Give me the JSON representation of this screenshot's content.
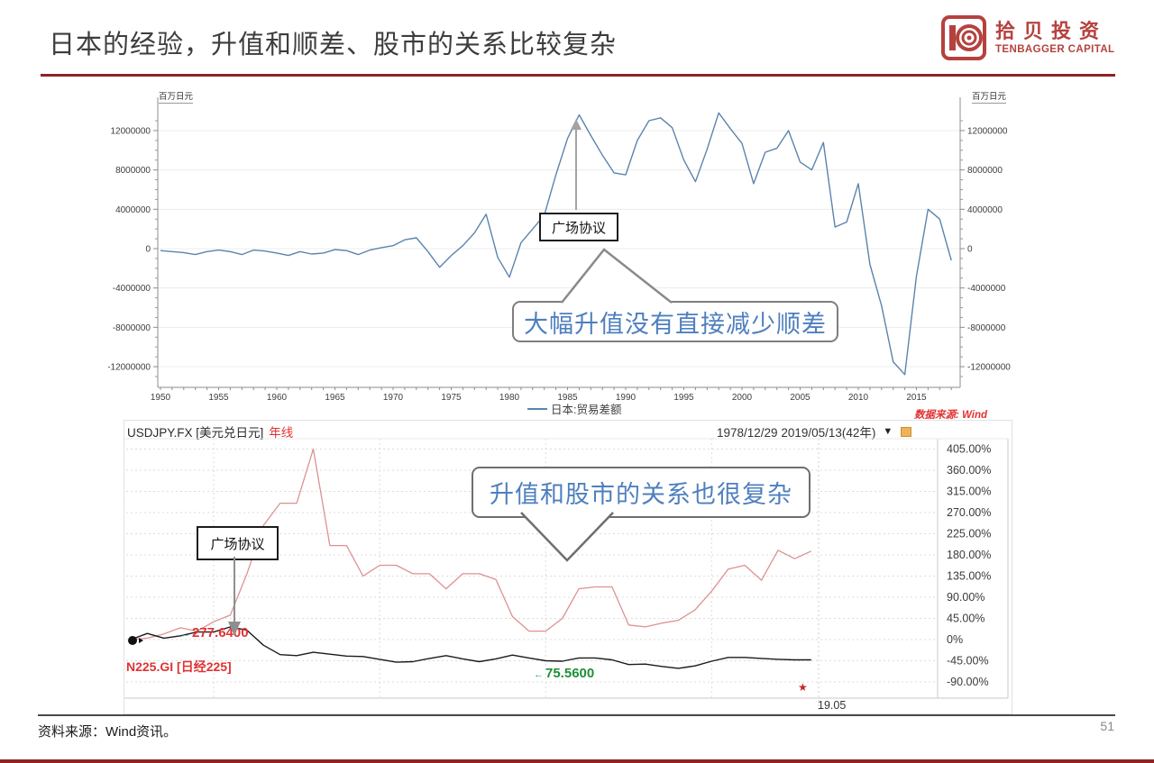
{
  "slide": {
    "title": "日本的经验，升值和顺差、股市的关系比较复杂",
    "footer_source": "资料来源：Wind资讯。",
    "page_number": "51",
    "accent_color": "#8e2323"
  },
  "logo": {
    "cn": "拾贝投资",
    "en": "TENBAGGER CAPITAL",
    "color": "#b5423e"
  },
  "icons": {
    "dropdown_arrow": "▼",
    "left_arrow": "←",
    "star": "★"
  },
  "chart_data": [
    {
      "type": "line",
      "title": "日本贸易差额(1950-2018)",
      "unit_label": "百万日元",
      "legend_position": "bottom-center",
      "grid": "horizontal light",
      "source_note": "数据来源: Wind",
      "annotation": "广场协议",
      "callout": "大幅升值没有直接减少顺差",
      "x_years": {
        "start": 1950,
        "end": 2018,
        "step": 1
      },
      "x_tick_labels": [
        "1950",
        "1955",
        "1960",
        "1965",
        "1970",
        "1975",
        "1980",
        "1985",
        "1990",
        "1995",
        "2000",
        "2005",
        "2010",
        "2015"
      ],
      "y_ticks": [
        12000000,
        8000000,
        4000000,
        0,
        -4000000,
        -8000000,
        -12000000
      ],
      "y_tick_labels": [
        "12000000",
        "8000000",
        "4000000",
        "0",
        "-4000000",
        "-8000000",
        "-12000000"
      ],
      "ylim": [
        -14000000,
        15000000
      ],
      "series": [
        {
          "name": "日本:贸易差额",
          "color": "#5b84ad",
          "values": [
            -200000,
            -300000,
            -400000,
            -600000,
            -300000,
            -150000,
            -300000,
            -600000,
            -150000,
            -250000,
            -450000,
            -700000,
            -300000,
            -550000,
            -450000,
            -100000,
            -200000,
            -600000,
            -150000,
            100000,
            300000,
            900000,
            1100000,
            -300000,
            -1900000,
            -700000,
            300000,
            1600000,
            3500000,
            -900000,
            -2900000,
            600000,
            2000000,
            3400000,
            7500000,
            11200000,
            13600000,
            11500000,
            9500000,
            7700000,
            7500000,
            11000000,
            13000000,
            13300000,
            12300000,
            9000000,
            6800000,
            10100000,
            13800000,
            12200000,
            10700000,
            6600000,
            9800000,
            10200000,
            12000000,
            8800000,
            8000000,
            10800000,
            2200000,
            2700000,
            6600000,
            -1600000,
            -5800000,
            -11500000,
            -12800000,
            -2800000,
            4000000,
            3000000,
            -1200000
          ]
        }
      ]
    },
    {
      "type": "line",
      "title": "美元兑日元与日经225(1978-2019, 涨跌幅)",
      "header": {
        "symbol": "USDJPY.FX [美元兑日元]",
        "period": "年线",
        "date_range": "1978/12/29 2019/05/13(42年)"
      },
      "annotation": "广场协议",
      "callout": "升值和股市的关系也很复杂",
      "grid": "dotted both axes",
      "x_years": {
        "start": 1978,
        "end": 2019,
        "step": 1
      },
      "y_ticks": [
        405,
        360,
        315,
        270,
        225,
        180,
        135,
        90,
        45,
        0,
        -45,
        -90
      ],
      "y_tick_labels": [
        "405.00%",
        "360.00%",
        "315.00%",
        "270.00%",
        "225.00%",
        "180.00%",
        "135.00%",
        "90.00%",
        "45.00%",
        "0%",
        "-45.00%",
        "-90.00%"
      ],
      "labels": {
        "series2_label": "N225.GI [日经225]",
        "high_value": "277.6400",
        "low_value": "75.5600",
        "x_axis_date": "19.05"
      },
      "series": [
        {
          "name": "N225.GI [日经225]",
          "color": "#de9191",
          "unit": "pct_change",
          "values": [
            0,
            3,
            12,
            25,
            18,
            38,
            52,
            140,
            243,
            290,
            290,
            405,
            200,
            200,
            135,
            158,
            158,
            140,
            140,
            108,
            140,
            140,
            128,
            49,
            18,
            18,
            45,
            108,
            112,
            112,
            31,
            27,
            35,
            41,
            63,
            103,
            150,
            158,
            126,
            190,
            172,
            188
          ]
        },
        {
          "name": "USDJPY.FX [美元兑日元]",
          "color": "#1a1a1a",
          "unit": "pct_change",
          "values": [
            0,
            13,
            3,
            8,
            16,
            16,
            27,
            20,
            -12,
            -32,
            -34,
            -27,
            -31,
            -35,
            -36,
            -42,
            -48,
            -47,
            -40,
            -34,
            -41,
            -47,
            -41,
            -33,
            -39,
            -45,
            -46,
            -39,
            -39,
            -43,
            -53,
            -52,
            -57,
            -61,
            -56,
            -46,
            -38,
            -38,
            -40,
            -42,
            -43,
            -43
          ]
        }
      ]
    }
  ]
}
